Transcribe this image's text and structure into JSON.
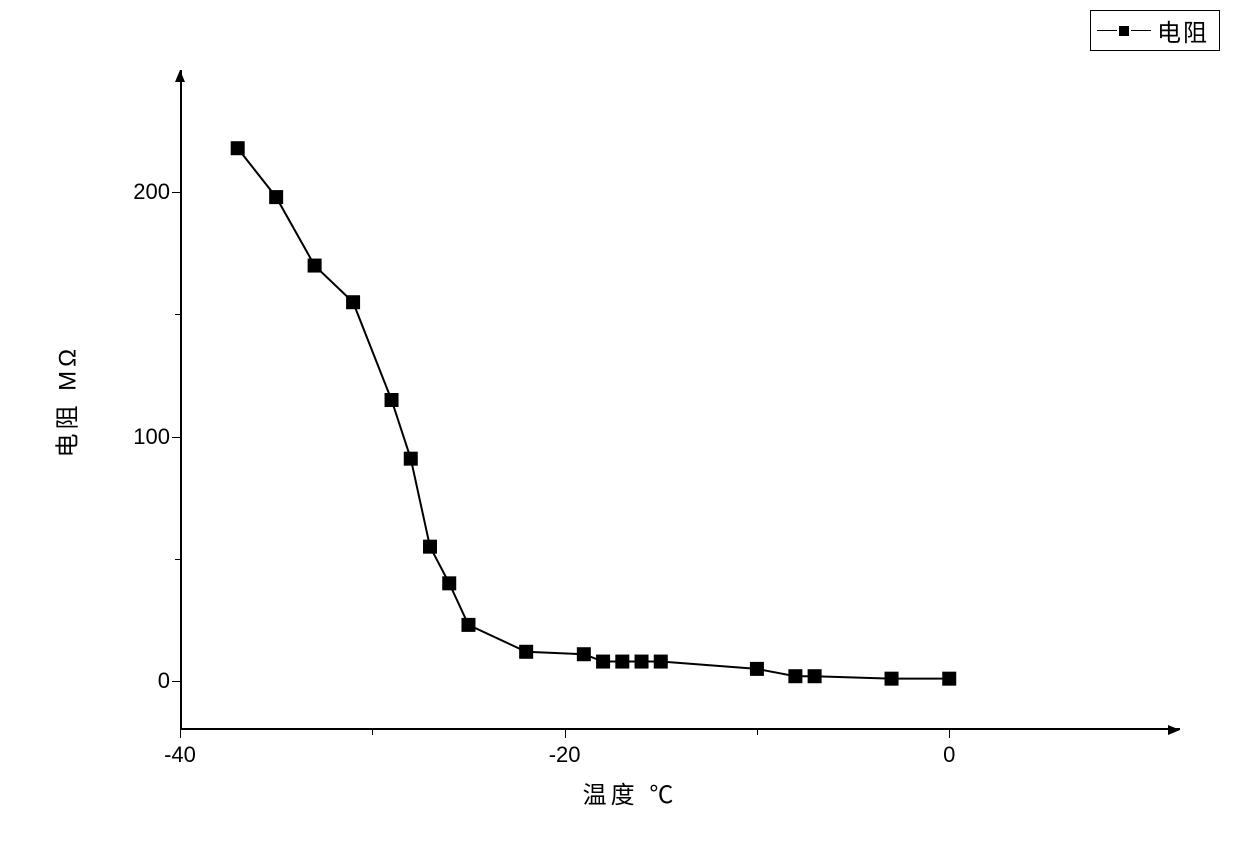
{
  "chart": {
    "type": "line",
    "legend": {
      "label": "电阻"
    },
    "y_axis": {
      "label": "电阻 MΩ",
      "min": -20,
      "max": 250,
      "major_ticks": [
        0,
        100,
        200
      ],
      "minor_ticks": [
        50,
        150
      ]
    },
    "x_axis": {
      "label": "温度 ℃",
      "min": -40,
      "max": 12,
      "major_ticks": [
        -40,
        -20,
        0
      ],
      "minor_ticks": [
        -30,
        -10
      ]
    },
    "series": {
      "color": "#000000",
      "line_width": 2,
      "marker": "square",
      "marker_size": 14,
      "data": [
        {
          "x": -37,
          "y": 218
        },
        {
          "x": -35,
          "y": 198
        },
        {
          "x": -33,
          "y": 170
        },
        {
          "x": -31,
          "y": 155
        },
        {
          "x": -29,
          "y": 115
        },
        {
          "x": -28,
          "y": 91
        },
        {
          "x": -27,
          "y": 55
        },
        {
          "x": -26,
          "y": 40
        },
        {
          "x": -25,
          "y": 23
        },
        {
          "x": -22,
          "y": 12
        },
        {
          "x": -19,
          "y": 11
        },
        {
          "x": -18,
          "y": 8
        },
        {
          "x": -17,
          "y": 8
        },
        {
          "x": -16,
          "y": 8
        },
        {
          "x": -15,
          "y": 8
        },
        {
          "x": -10,
          "y": 5
        },
        {
          "x": -8,
          "y": 2
        },
        {
          "x": -7,
          "y": 2
        },
        {
          "x": -3,
          "y": 1
        },
        {
          "x": 0,
          "y": 1
        }
      ]
    },
    "background_color": "#ffffff"
  }
}
